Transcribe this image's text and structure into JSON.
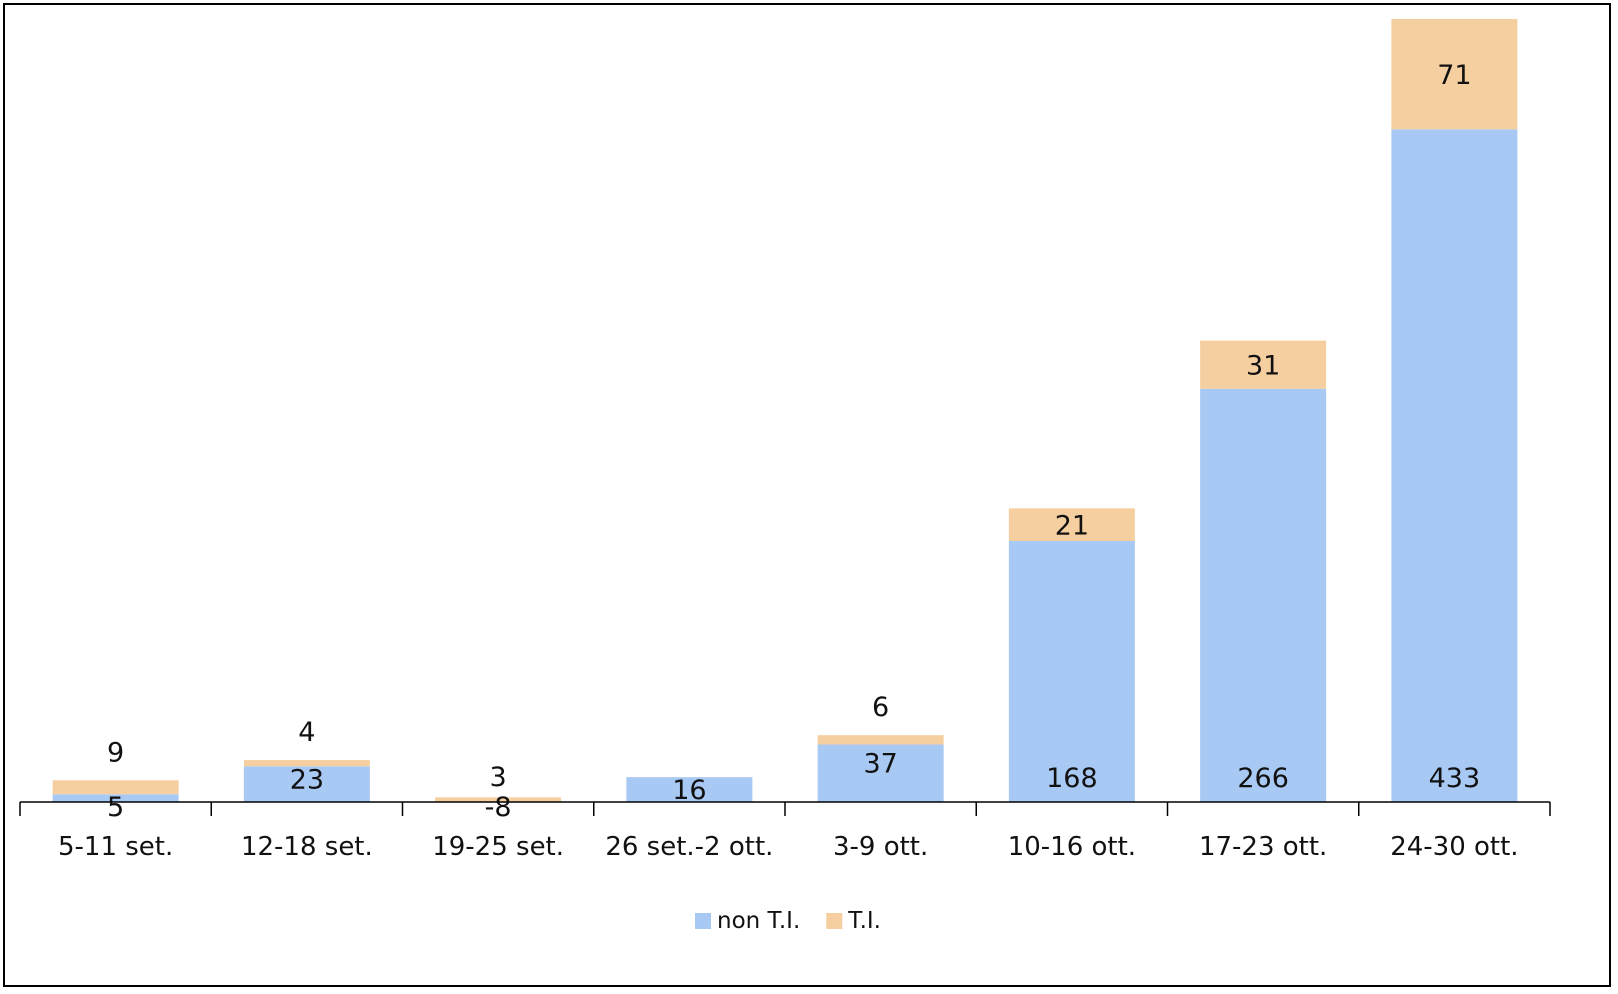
{
  "chart_data": {
    "type": "bar",
    "stacked": true,
    "categories": [
      "5-11 set.",
      "12-18 set.",
      "19-25 set.",
      "26 set.-2 ott.",
      "3-9 ott.",
      "10-16 ott.",
      "17-23 ott.",
      "24-30 ott."
    ],
    "series": [
      {
        "name": "non T.I.",
        "color": "#a8c9f3",
        "values": [
          5,
          23,
          -8,
          16,
          37,
          168,
          266,
          433
        ]
      },
      {
        "name": "T.I.",
        "color": "#f6cfa0",
        "values": [
          9,
          4,
          3,
          0,
          6,
          21,
          31,
          71
        ]
      }
    ],
    "title": "",
    "xlabel": "",
    "ylabel": "",
    "ylim": [
      -10,
      506
    ],
    "grid": false,
    "y_axis_visible": false,
    "data_labels": true,
    "legend_position": "bottom"
  }
}
